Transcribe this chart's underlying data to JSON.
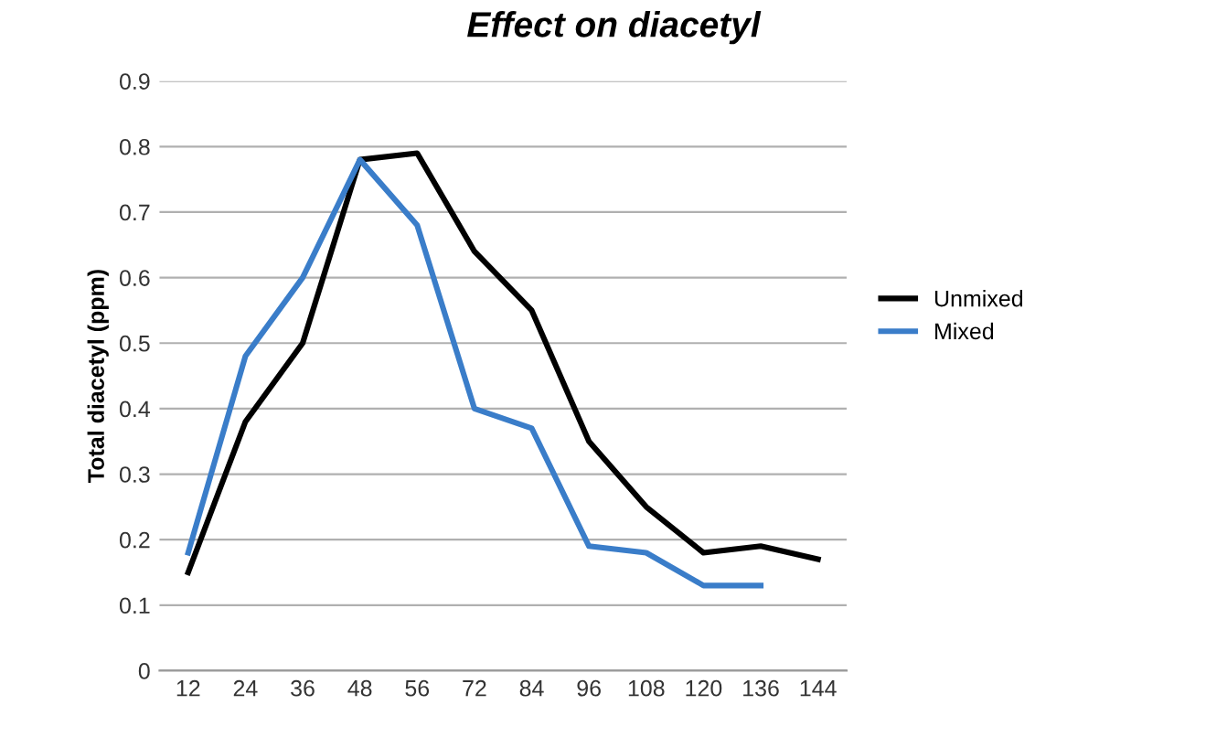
{
  "chart_data": {
    "type": "line",
    "title": "Effect on diacetyl",
    "ylabel": "Total diacetyl (ppm)",
    "categories": [
      "12",
      "24",
      "36",
      "48",
      "56",
      "72",
      "84",
      "96",
      "108",
      "120",
      "136",
      "144"
    ],
    "series": [
      {
        "name": "Unmixed",
        "color": "#000000",
        "values": [
          0.15,
          0.38,
          0.5,
          0.78,
          0.79,
          0.64,
          0.55,
          0.35,
          0.25,
          0.18,
          0.19,
          0.17
        ]
      },
      {
        "name": "Mixed",
        "color": "#3a7dc9",
        "values": [
          0.18,
          0.48,
          0.6,
          0.78,
          0.68,
          0.4,
          0.37,
          0.19,
          0.18,
          0.13,
          0.13,
          null
        ]
      }
    ],
    "ylim": [
      0,
      0.9
    ],
    "yticks": [
      0,
      0.1,
      0.2,
      0.3,
      0.4,
      0.5,
      0.6,
      0.7,
      0.8,
      0.9
    ],
    "grid": "y",
    "legend": "right",
    "marker": "none",
    "line_style": "solid"
  }
}
